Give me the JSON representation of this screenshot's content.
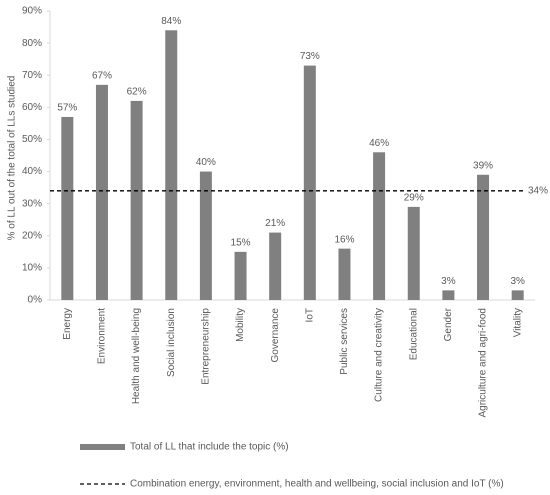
{
  "chart_data": {
    "type": "bar",
    "y_label": "% of LL out of the total of LLs studied",
    "categories": [
      "Energy",
      "Environment",
      "Health and well-being",
      "Social inclusion",
      "Entrepreneurship",
      "Mobility",
      "Governance",
      "IoT",
      "Public services",
      "Culture and creativity",
      "Educational",
      "Gender",
      "Agriculture and agri-food",
      "Vitality"
    ],
    "series": [
      {
        "name": "Total of LL that include the topic (%)",
        "color": "#808080",
        "values": [
          57,
          67,
          62,
          84,
          40,
          15,
          21,
          73,
          16,
          46,
          29,
          3,
          39,
          3
        ],
        "value_labels": [
          "57%",
          "67%",
          "62%",
          "84%",
          "40%",
          "15%",
          "21%",
          "73%",
          "16%",
          "46%",
          "29%",
          "3%",
          "39%",
          "3%"
        ]
      }
    ],
    "reference_line": {
      "name": "Combination energy, environment, health and wellbeing, social inclusion and IoT (%)",
      "value": 34,
      "value_label": "34%",
      "color": "#000000"
    },
    "ylim": [
      0,
      90
    ],
    "yticks": [
      {
        "value": 0,
        "label": "0%"
      },
      {
        "value": 10,
        "label": "10%"
      },
      {
        "value": 20,
        "label": "20%"
      },
      {
        "value": 30,
        "label": "30%"
      },
      {
        "value": 40,
        "label": "40%"
      },
      {
        "value": 50,
        "label": "50%"
      },
      {
        "value": 60,
        "label": "60%"
      },
      {
        "value": 70,
        "label": "70%"
      },
      {
        "value": 80,
        "label": "80%"
      },
      {
        "value": 90,
        "label": "90%"
      }
    ],
    "grid": false
  }
}
